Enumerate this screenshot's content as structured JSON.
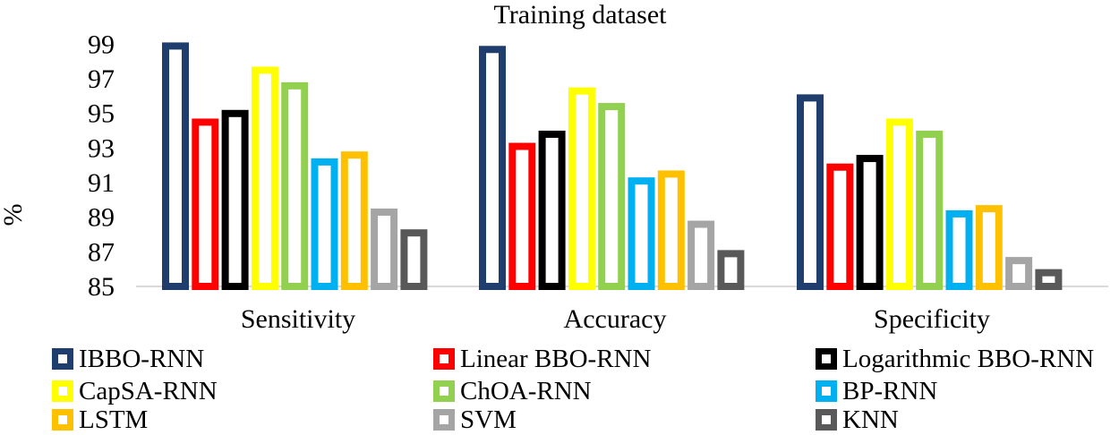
{
  "chart_data": {
    "type": "bar",
    "title": "Training dataset",
    "xlabel": "",
    "ylabel": "%",
    "ylim": [
      85,
      100
    ],
    "yticks": [
      85,
      87,
      89,
      91,
      93,
      95,
      97,
      99
    ],
    "grid": false,
    "legend_position": "bottom",
    "categories": [
      "Sensitivity",
      "Accuracy",
      "Specificity"
    ],
    "series": [
      {
        "name": "IBBO-RNN",
        "color": "#1f3e6d",
        "values": [
          99.1,
          98.9,
          96.1
        ]
      },
      {
        "name": "Linear BBO-RNN",
        "color": "#ff0000",
        "values": [
          94.7,
          93.3,
          92.1
        ]
      },
      {
        "name": "Logarithmic BBO-RNN",
        "color": "#000000",
        "values": [
          95.2,
          94.0,
          92.6
        ]
      },
      {
        "name": "CapSA-RNN",
        "color": "#ffff00",
        "values": [
          97.7,
          96.5,
          94.7
        ]
      },
      {
        "name": "ChOA-RNN",
        "color": "#92d050",
        "values": [
          96.8,
          95.6,
          94.0
        ]
      },
      {
        "name": "BP-RNN",
        "color": "#00b0f0",
        "values": [
          92.4,
          91.3,
          89.4
        ]
      },
      {
        "name": "LSTM",
        "color": "#ffc000",
        "values": [
          92.8,
          91.7,
          89.7
        ]
      },
      {
        "name": "SVM",
        "color": "#a5a5a5",
        "values": [
          89.5,
          88.8,
          86.7
        ]
      },
      {
        "name": "KNN",
        "color": "#595959",
        "values": [
          88.3,
          87.1,
          86.0
        ]
      }
    ]
  }
}
